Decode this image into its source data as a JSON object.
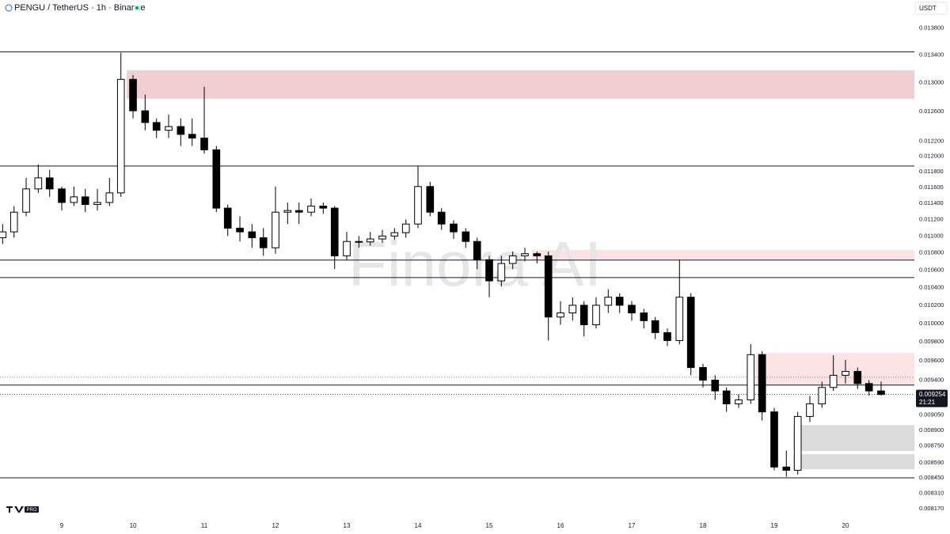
{
  "chart_data": {
    "type": "candlestick",
    "title": "PENGU / TetherUS · 1h · Binance",
    "currency": "USDT",
    "watermark": "Finora AI",
    "logo": "PRO",
    "log_scale": true,
    "up_color": "#ffffff",
    "down_color": "#000000",
    "xlim": [
      8.133,
      20.967
    ],
    "xticks": [
      9,
      10,
      11,
      12,
      13,
      14,
      15,
      16,
      17,
      18,
      19,
      20
    ],
    "ylim": [
      0.008086,
      0.01423
    ],
    "yticks": [
      {
        "value": 0.0138,
        "label": "0.013800"
      },
      {
        "value": 0.0134,
        "label": "0.013400"
      },
      {
        "value": 0.013,
        "label": "0.013000"
      },
      {
        "value": 0.0126,
        "label": "0.012600"
      },
      {
        "value": 0.0122,
        "label": "0.012200"
      },
      {
        "value": 0.012,
        "label": "0.012000"
      },
      {
        "value": 0.0118,
        "label": "0.011800"
      },
      {
        "value": 0.0116,
        "label": "0.011600"
      },
      {
        "value": 0.0114,
        "label": "0.011400"
      },
      {
        "value": 0.0112,
        "label": "0.011200"
      },
      {
        "value": 0.011,
        "label": "0.011000"
      },
      {
        "value": 0.0108,
        "label": "0.010800"
      },
      {
        "value": 0.0106,
        "label": "0.010600"
      },
      {
        "value": 0.0104,
        "label": "0.010400"
      },
      {
        "value": 0.0102,
        "label": "0.010200"
      },
      {
        "value": 0.01,
        "label": "0.010000"
      },
      {
        "value": 0.0098,
        "label": "0.009800"
      },
      {
        "value": 0.0096,
        "label": "0.009600"
      },
      {
        "value": 0.0094,
        "label": "0.009400"
      },
      {
        "value": 0.00905,
        "label": "0.009050"
      },
      {
        "value": 0.0089,
        "label": "0.008900"
      },
      {
        "value": 0.00875,
        "label": "0.008750"
      },
      {
        "value": 0.00859,
        "label": "0.008590"
      },
      {
        "value": 0.00845,
        "label": "0.008450"
      },
      {
        "value": 0.00831,
        "label": "0.008310"
      },
      {
        "value": 0.00817,
        "label": "0.008170"
      }
    ],
    "last_price": {
      "value": 0.009254,
      "label": "0.009254"
    },
    "countdown": "21:21",
    "levels": [
      0.013446,
      0.011873,
      0.010715,
      0.010513,
      0.009349,
      0.00845
    ],
    "dotted_levels": [
      0.00943
    ],
    "zones": [
      {
        "from": 9.911,
        "top": 0.01318,
        "bottom": 0.012777,
        "color": "#efcfd1"
      },
      {
        "from": 15.6,
        "top": 0.010834,
        "bottom": 0.010724,
        "color": "#fbe3e4"
      },
      {
        "from": 18.74,
        "top": 0.009683,
        "bottom": 0.009349,
        "color": "#fbe3e4"
      },
      {
        "from": 19.27,
        "top": 0.00895,
        "bottom": 0.0087,
        "color": "#dcdcdc"
      },
      {
        "from": 19.27,
        "top": 0.00867,
        "bottom": 0.008528,
        "color": "#dcdcdc"
      }
    ],
    "x": [
      8.17,
      8.33,
      8.5,
      8.67,
      8.83,
      9,
      9.17,
      9.33,
      9.5,
      9.67,
      9.83,
      10,
      10.17,
      10.33,
      10.5,
      10.67,
      10.83,
      11,
      11.17,
      11.33,
      11.5,
      11.67,
      11.83,
      12,
      12.17,
      12.33,
      12.5,
      12.67,
      12.83,
      13,
      13.17,
      13.33,
      13.5,
      13.67,
      13.83,
      14,
      14.17,
      14.33,
      14.5,
      14.67,
      14.83,
      15,
      15.17,
      15.33,
      15.5,
      15.67,
      15.83,
      16,
      16.17,
      16.33,
      16.5,
      16.67,
      16.83,
      17,
      17.17,
      17.33,
      17.5,
      17.67,
      17.83,
      18,
      18.17,
      18.33,
      18.5,
      18.67,
      18.83,
      19,
      19.17,
      19.33,
      19.5,
      19.67,
      19.83,
      20,
      20.17,
      20.33,
      20.5
    ],
    "candles": [
      [
        0.01098,
        0.011145,
        0.010905,
        0.01105
      ],
      [
        0.01105,
        0.011365,
        0.01098,
        0.01129
      ],
      [
        0.01129,
        0.01172,
        0.01124,
        0.01158
      ],
      [
        0.01158,
        0.011895,
        0.01153,
        0.01172
      ],
      [
        0.01172,
        0.011823,
        0.01148,
        0.01158
      ],
      [
        0.01158,
        0.01161,
        0.01131,
        0.01141
      ],
      [
        0.01141,
        0.01161,
        0.011365,
        0.01148
      ],
      [
        0.01148,
        0.01158,
        0.01129,
        0.011385
      ],
      [
        0.011385,
        0.01158,
        0.01131,
        0.01141
      ],
      [
        0.01141,
        0.01172,
        0.011365,
        0.01153
      ],
      [
        0.01153,
        0.013435,
        0.01148,
        0.01305
      ],
      [
        0.01305,
        0.01311,
        0.012506,
        0.01261
      ],
      [
        0.01261,
        0.012835,
        0.012345,
        0.01245
      ],
      [
        0.01245,
        0.012506,
        0.01224,
        0.012345
      ],
      [
        0.012345,
        0.01256,
        0.01224,
        0.012395
      ],
      [
        0.012395,
        0.012506,
        0.012135,
        0.01229
      ],
      [
        0.01229,
        0.012506,
        0.012135,
        0.01224
      ],
      [
        0.01224,
        0.012945,
        0.012035,
        0.012085
      ],
      [
        0.012085,
        0.012135,
        0.01129,
        0.01134
      ],
      [
        0.01134,
        0.011385,
        0.011,
        0.011095
      ],
      [
        0.011095,
        0.01124,
        0.010935,
        0.01105
      ],
      [
        0.01105,
        0.011145,
        0.01086,
        0.01098
      ],
      [
        0.01098,
        0.011095,
        0.010765,
        0.01086
      ],
      [
        0.01086,
        0.01161,
        0.01079,
        0.01129
      ],
      [
        0.01129,
        0.01141,
        0.011145,
        0.01131
      ],
      [
        0.01131,
        0.01141,
        0.011145,
        0.01129
      ],
      [
        0.01129,
        0.01146,
        0.01124,
        0.011365
      ],
      [
        0.011365,
        0.01141,
        0.01127,
        0.01134
      ],
      [
        0.01134,
        0.011365,
        0.01061,
        0.010765
      ],
      [
        0.010765,
        0.01105,
        0.01072,
        0.010935
      ],
      [
        0.010935,
        0.011,
        0.01086,
        0.01093
      ],
      [
        0.01093,
        0.01105,
        0.010885,
        0.010965
      ],
      [
        0.010965,
        0.011075,
        0.01092,
        0.011
      ],
      [
        0.011,
        0.011095,
        0.010955,
        0.01104
      ],
      [
        0.01104,
        0.0112,
        0.01098,
        0.011145
      ],
      [
        0.011145,
        0.011875,
        0.011095,
        0.01161
      ],
      [
        0.01161,
        0.01167,
        0.01124,
        0.01129
      ],
      [
        0.01129,
        0.01134,
        0.011075,
        0.011145
      ],
      [
        0.011145,
        0.01119,
        0.010965,
        0.01105
      ],
      [
        0.01105,
        0.011095,
        0.01086,
        0.010935
      ],
      [
        0.010935,
        0.01098,
        0.01061,
        0.01072
      ],
      [
        0.01072,
        0.010765,
        0.01029,
        0.010475
      ],
      [
        0.010475,
        0.010765,
        0.01041,
        0.010675
      ],
      [
        0.010675,
        0.010815,
        0.01061,
        0.010765
      ],
      [
        0.010765,
        0.01086,
        0.0107,
        0.01079
      ],
      [
        0.01079,
        0.010815,
        0.010675,
        0.010765
      ],
      [
        0.010765,
        0.010815,
        0.009815,
        0.01007
      ],
      [
        0.01007,
        0.010245,
        0.009985,
        0.010115
      ],
      [
        0.010115,
        0.01029,
        0.01003,
        0.0102
      ],
      [
        0.0102,
        0.010245,
        0.00986,
        0.009985
      ],
      [
        0.009985,
        0.01029,
        0.009945,
        0.0102
      ],
      [
        0.0102,
        0.01038,
        0.010115,
        0.01029
      ],
      [
        0.01029,
        0.010335,
        0.010115,
        0.0102
      ],
      [
        0.0102,
        0.010245,
        0.01003,
        0.010115
      ],
      [
        0.010115,
        0.01016,
        0.009945,
        0.01003
      ],
      [
        0.01003,
        0.01007,
        0.00983,
        0.0099
      ],
      [
        0.0099,
        0.009945,
        0.009755,
        0.009815
      ],
      [
        0.009815,
        0.01072,
        0.009775,
        0.01029
      ],
      [
        0.01029,
        0.010335,
        0.00945,
        0.00953
      ],
      [
        0.00953,
        0.00957,
        0.009325,
        0.0094
      ],
      [
        0.0094,
        0.00945,
        0.0092,
        0.00929
      ],
      [
        0.00929,
        0.009325,
        0.00908,
        0.00916
      ],
      [
        0.00916,
        0.009254,
        0.00912,
        0.0092
      ],
      [
        0.0092,
        0.009775,
        0.00916,
        0.009665
      ],
      [
        0.009665,
        0.0097,
        0.008995,
        0.00908
      ],
      [
        0.00908,
        0.00912,
        0.00852,
        0.00855
      ],
      [
        0.00855,
        0.008705,
        0.00846,
        0.00852
      ],
      [
        0.00852,
        0.00908,
        0.00848,
        0.009035
      ],
      [
        0.009035,
        0.00924,
        0.00898,
        0.00916
      ],
      [
        0.00916,
        0.009385,
        0.00912,
        0.009325
      ],
      [
        0.009325,
        0.009658,
        0.00929,
        0.00945
      ],
      [
        0.00945,
        0.00961,
        0.009365,
        0.00949
      ],
      [
        0.00949,
        0.00953,
        0.00931,
        0.009365
      ],
      [
        0.009365,
        0.0094,
        0.009244,
        0.00929
      ],
      [
        0.00929,
        0.009385,
        0.009244,
        0.009254
      ]
    ]
  }
}
